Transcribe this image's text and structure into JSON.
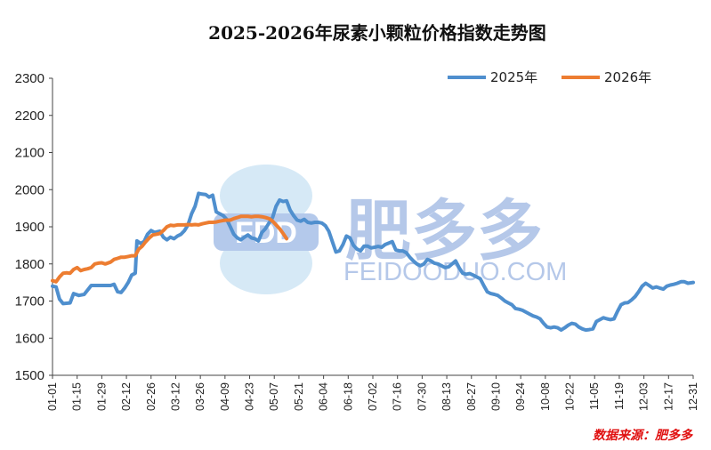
{
  "chart_data": {
    "type": "line",
    "title": "2025-2026年尿素小颗粒价格指数走势图",
    "xlabel": "",
    "ylabel": "",
    "ylim": [
      1500,
      2300
    ],
    "yticks": [
      1500,
      1600,
      1700,
      1800,
      1900,
      2000,
      2100,
      2200,
      2300
    ],
    "x_ticks": [
      "01-01",
      "01-15",
      "01-29",
      "02-12",
      "02-26",
      "03-12",
      "03-26",
      "04-09",
      "04-23",
      "05-07",
      "05-21",
      "06-04",
      "06-18",
      "07-02",
      "07-16",
      "07-30",
      "08-13",
      "08-27",
      "09-10",
      "09-24",
      "10-08",
      "10-22",
      "11-05",
      "11-19",
      "12-03",
      "12-17",
      "12-31"
    ],
    "grid": false,
    "legend_position": "top-right",
    "series": [
      {
        "name": "2025年",
        "color": "#4f8fce",
        "points": [
          [
            "01-01",
            1740
          ],
          [
            "01-03",
            1738
          ],
          [
            "01-05",
            1705
          ],
          [
            "01-07",
            1693
          ],
          [
            "01-09",
            1694
          ],
          [
            "01-11",
            1695
          ],
          [
            "01-13",
            1720
          ],
          [
            "01-16",
            1715
          ],
          [
            "01-19",
            1718
          ],
          [
            "01-21",
            1730
          ],
          [
            "01-23",
            1742
          ],
          [
            "01-27",
            1742
          ],
          [
            "01-31",
            1742
          ],
          [
            "02-03",
            1742
          ],
          [
            "02-05",
            1745
          ],
          [
            "02-07",
            1725
          ],
          [
            "02-09",
            1723
          ],
          [
            "02-11",
            1735
          ],
          [
            "02-13",
            1750
          ],
          [
            "02-15",
            1770
          ],
          [
            "02-17",
            1775
          ],
          [
            "02-18",
            1862
          ],
          [
            "02-20",
            1855
          ],
          [
            "02-22",
            1860
          ],
          [
            "02-24",
            1880
          ],
          [
            "02-26",
            1890
          ],
          [
            "02-28",
            1885
          ],
          [
            "03-03",
            1888
          ],
          [
            "03-05",
            1872
          ],
          [
            "03-07",
            1865
          ],
          [
            "03-09",
            1872
          ],
          [
            "03-11",
            1868
          ],
          [
            "03-13",
            1875
          ],
          [
            "03-15",
            1880
          ],
          [
            "03-17",
            1890
          ],
          [
            "03-19",
            1905
          ],
          [
            "03-21",
            1935
          ],
          [
            "03-23",
            1955
          ],
          [
            "03-25",
            1990
          ],
          [
            "03-27",
            1988
          ],
          [
            "03-29",
            1987
          ],
          [
            "03-31",
            1980
          ],
          [
            "04-02",
            1985
          ],
          [
            "04-04",
            1940
          ],
          [
            "04-06",
            1935
          ],
          [
            "04-08",
            1930
          ],
          [
            "04-10",
            1920
          ],
          [
            "04-12",
            1900
          ],
          [
            "04-14",
            1880
          ],
          [
            "04-16",
            1870
          ],
          [
            "04-18",
            1865
          ],
          [
            "04-20",
            1872
          ],
          [
            "04-22",
            1878
          ],
          [
            "04-24",
            1870
          ],
          [
            "04-26",
            1868
          ],
          [
            "04-28",
            1862
          ],
          [
            "04-30",
            1885
          ],
          [
            "05-02",
            1895
          ],
          [
            "05-04",
            1910
          ],
          [
            "05-06",
            1925
          ],
          [
            "05-08",
            1955
          ],
          [
            "05-10",
            1972
          ],
          [
            "05-12",
            1968
          ],
          [
            "05-14",
            1970
          ],
          [
            "05-16",
            1945
          ],
          [
            "05-18",
            1930
          ],
          [
            "05-20",
            1918
          ],
          [
            "05-22",
            1915
          ],
          [
            "05-24",
            1920
          ],
          [
            "05-26",
            1912
          ],
          [
            "05-28",
            1910
          ],
          [
            "05-30",
            1912
          ],
          [
            "06-01",
            1912
          ],
          [
            "06-03",
            1910
          ],
          [
            "06-05",
            1903
          ],
          [
            "06-07",
            1888
          ],
          [
            "06-09",
            1860
          ],
          [
            "06-11",
            1832
          ],
          [
            "06-13",
            1835
          ],
          [
            "06-15",
            1852
          ],
          [
            "06-17",
            1875
          ],
          [
            "06-19",
            1870
          ],
          [
            "06-21",
            1850
          ],
          [
            "06-23",
            1840
          ],
          [
            "06-25",
            1835
          ],
          [
            "06-27",
            1848
          ],
          [
            "06-29",
            1848
          ],
          [
            "07-01",
            1843
          ],
          [
            "07-03",
            1845
          ],
          [
            "07-05",
            1847
          ],
          [
            "07-07",
            1845
          ],
          [
            "07-09",
            1852
          ],
          [
            "07-11",
            1856
          ],
          [
            "07-13",
            1860
          ],
          [
            "07-15",
            1838
          ],
          [
            "07-17",
            1835
          ],
          [
            "07-19",
            1835
          ],
          [
            "07-21",
            1830
          ],
          [
            "07-23",
            1818
          ],
          [
            "07-25",
            1808
          ],
          [
            "07-27",
            1800
          ],
          [
            "07-29",
            1795
          ],
          [
            "07-31",
            1800
          ],
          [
            "08-02",
            1812
          ],
          [
            "08-04",
            1808
          ],
          [
            "08-06",
            1802
          ],
          [
            "08-08",
            1800
          ],
          [
            "08-10",
            1795
          ],
          [
            "08-12",
            1790
          ],
          [
            "08-14",
            1792
          ],
          [
            "08-16",
            1800
          ],
          [
            "08-18",
            1808
          ],
          [
            "08-20",
            1790
          ],
          [
            "08-22",
            1775
          ],
          [
            "08-24",
            1772
          ],
          [
            "08-26",
            1774
          ],
          [
            "08-28",
            1770
          ],
          [
            "08-30",
            1765
          ],
          [
            "09-01",
            1760
          ],
          [
            "09-03",
            1742
          ],
          [
            "09-05",
            1725
          ],
          [
            "09-07",
            1720
          ],
          [
            "09-09",
            1718
          ],
          [
            "09-11",
            1715
          ],
          [
            "09-13",
            1708
          ],
          [
            "09-15",
            1700
          ],
          [
            "09-17",
            1695
          ],
          [
            "09-19",
            1690
          ],
          [
            "09-21",
            1680
          ],
          [
            "09-23",
            1678
          ],
          [
            "09-25",
            1675
          ],
          [
            "09-27",
            1670
          ],
          [
            "09-29",
            1665
          ],
          [
            "10-01",
            1660
          ],
          [
            "10-03",
            1657
          ],
          [
            "10-05",
            1652
          ],
          [
            "10-07",
            1640
          ],
          [
            "10-09",
            1630
          ],
          [
            "10-11",
            1628
          ],
          [
            "10-13",
            1630
          ],
          [
            "10-15",
            1628
          ],
          [
            "10-17",
            1622
          ],
          [
            "10-19",
            1628
          ],
          [
            "10-21",
            1635
          ],
          [
            "10-23",
            1640
          ],
          [
            "10-25",
            1638
          ],
          [
            "10-27",
            1630
          ],
          [
            "10-29",
            1625
          ],
          [
            "10-31",
            1622
          ],
          [
            "11-02",
            1623
          ],
          [
            "11-04",
            1625
          ],
          [
            "11-06",
            1645
          ],
          [
            "11-08",
            1650
          ],
          [
            "11-10",
            1655
          ],
          [
            "11-12",
            1652
          ],
          [
            "11-14",
            1650
          ],
          [
            "11-16",
            1652
          ],
          [
            "11-18",
            1672
          ],
          [
            "11-20",
            1690
          ],
          [
            "11-22",
            1695
          ],
          [
            "11-24",
            1696
          ],
          [
            "11-26",
            1703
          ],
          [
            "11-28",
            1712
          ],
          [
            "11-30",
            1725
          ],
          [
            "12-02",
            1740
          ],
          [
            "12-04",
            1748
          ],
          [
            "12-06",
            1742
          ],
          [
            "12-08",
            1735
          ],
          [
            "12-10",
            1738
          ],
          [
            "12-12",
            1735
          ],
          [
            "12-14",
            1732
          ],
          [
            "12-16",
            1740
          ],
          [
            "12-18",
            1743
          ],
          [
            "12-20",
            1745
          ],
          [
            "12-22",
            1748
          ],
          [
            "12-24",
            1752
          ],
          [
            "12-26",
            1752
          ],
          [
            "12-28",
            1748
          ],
          [
            "12-31",
            1750
          ]
        ]
      },
      {
        "name": "2026年",
        "color": "#ed7d31",
        "points": [
          [
            "01-01",
            1755
          ],
          [
            "01-03",
            1752
          ],
          [
            "01-05",
            1765
          ],
          [
            "01-07",
            1775
          ],
          [
            "01-09",
            1776
          ],
          [
            "01-11",
            1775
          ],
          [
            "01-13",
            1785
          ],
          [
            "01-15",
            1790
          ],
          [
            "01-17",
            1782
          ],
          [
            "01-19",
            1785
          ],
          [
            "01-21",
            1787
          ],
          [
            "01-23",
            1790
          ],
          [
            "01-25",
            1800
          ],
          [
            "01-27",
            1802
          ],
          [
            "01-29",
            1803
          ],
          [
            "01-31",
            1800
          ],
          [
            "02-03",
            1805
          ],
          [
            "02-05",
            1812
          ],
          [
            "02-07",
            1815
          ],
          [
            "02-09",
            1818
          ],
          [
            "02-11",
            1818
          ],
          [
            "02-13",
            1820
          ],
          [
            "02-15",
            1822
          ],
          [
            "02-17",
            1822
          ],
          [
            "02-19",
            1840
          ],
          [
            "02-21",
            1848
          ],
          [
            "02-23",
            1860
          ],
          [
            "02-25",
            1870
          ],
          [
            "02-27",
            1878
          ],
          [
            "03-01",
            1880
          ],
          [
            "03-03",
            1882
          ],
          [
            "03-05",
            1890
          ],
          [
            "03-07",
            1900
          ],
          [
            "03-09",
            1904
          ],
          [
            "03-11",
            1903
          ],
          [
            "03-13",
            1905
          ],
          [
            "03-15",
            1905
          ],
          [
            "03-17",
            1905
          ],
          [
            "03-19",
            1906
          ],
          [
            "03-21",
            1905
          ],
          [
            "03-23",
            1906
          ],
          [
            "03-25",
            1905
          ],
          [
            "03-27",
            1908
          ],
          [
            "03-29",
            1910
          ],
          [
            "03-31",
            1912
          ],
          [
            "04-02",
            1912
          ],
          [
            "04-04",
            1913
          ],
          [
            "04-06",
            1915
          ],
          [
            "04-08",
            1917
          ],
          [
            "04-10",
            1918
          ],
          [
            "04-12",
            1918
          ],
          [
            "04-14",
            1922
          ],
          [
            "04-16",
            1925
          ],
          [
            "04-18",
            1928
          ],
          [
            "04-20",
            1928
          ],
          [
            "04-22",
            1928
          ],
          [
            "04-24",
            1927
          ],
          [
            "04-26",
            1928
          ],
          [
            "04-28",
            1928
          ],
          [
            "04-30",
            1927
          ],
          [
            "05-02",
            1925
          ],
          [
            "05-04",
            1922
          ],
          [
            "05-06",
            1915
          ],
          [
            "05-08",
            1905
          ],
          [
            "05-10",
            1895
          ],
          [
            "05-12",
            1882
          ],
          [
            "05-14",
            1868
          ]
        ]
      }
    ],
    "source_note": "数据来源：肥多多",
    "watermark": {
      "text_cn": "肥多多",
      "text_en": "FEIDOODUO.COM",
      "logo_text": "FDD"
    }
  }
}
